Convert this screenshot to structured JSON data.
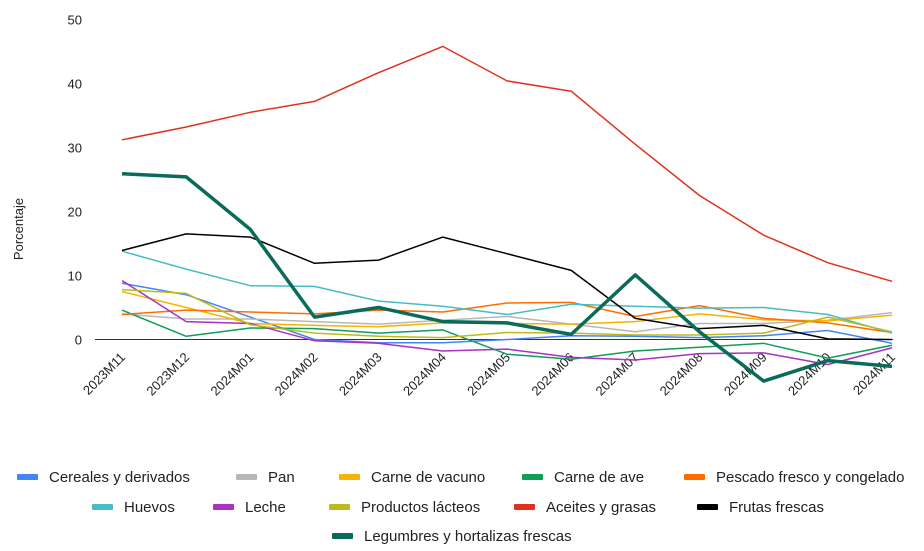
{
  "chart_data": {
    "type": "line",
    "ylabel": "Porcentaje",
    "ylim": [
      -10,
      50
    ],
    "yticks": [
      "50",
      "40",
      "30",
      "20",
      "10",
      "0"
    ],
    "categories": [
      "2023M11",
      "2023M12",
      "2024M01",
      "2024M02",
      "2024M03",
      "2024M04",
      "2024M05",
      "2024M06",
      "2024M07",
      "2024M08",
      "2024M09",
      "2024M10",
      "2024M11"
    ],
    "legend_position": "bottom",
    "series": [
      {
        "name": "Cereales y derivados",
        "color": "#4285f4",
        "values": [
          8.8,
          7.0,
          3.5,
          0.0,
          -0.5,
          -0.5,
          0.0,
          0.6,
          0.5,
          0.3,
          0.6,
          1.4,
          -0.6
        ]
      },
      {
        "name": "Pan",
        "color": "#b7b7b7",
        "values": [
          4.0,
          3.2,
          3.2,
          2.8,
          2.4,
          3.0,
          3.6,
          2.4,
          1.2,
          2.5,
          2.5,
          3.0,
          4.2
        ]
      },
      {
        "name": "Carne de vacuno",
        "color": "#f4b400",
        "values": [
          7.5,
          5.0,
          2.5,
          2.2,
          2.0,
          2.6,
          2.5,
          2.4,
          2.8,
          4.0,
          3.1,
          2.9,
          3.8
        ]
      },
      {
        "name": "Carne de ave",
        "color": "#0f9d58",
        "values": [
          4.6,
          0.5,
          1.8,
          1.7,
          1.0,
          1.5,
          -2.3,
          -3.1,
          -1.8,
          -1.2,
          -0.6,
          -2.9,
          -0.9
        ]
      },
      {
        "name": "Pescado fresco y congelado",
        "color": "#ff6d00",
        "values": [
          3.9,
          4.6,
          4.3,
          4.0,
          4.6,
          4.3,
          5.7,
          5.8,
          3.6,
          5.3,
          3.3,
          2.6,
          1.1
        ]
      },
      {
        "name": "Huevos",
        "color": "#46bdc6",
        "values": [
          13.8,
          11.0,
          8.4,
          8.3,
          6.0,
          5.2,
          3.9,
          5.5,
          5.2,
          4.9,
          5.0,
          3.9,
          1.0
        ]
      },
      {
        "name": "Leche",
        "color": "#ab30c4",
        "values": [
          9.2,
          2.8,
          2.5,
          -0.2,
          -0.6,
          -1.8,
          -1.5,
          -2.8,
          -3.2,
          -2.2,
          -2.1,
          -3.9,
          -1.3
        ]
      },
      {
        "name": "Productos lácteos",
        "color": "#bfb91b",
        "values": [
          7.8,
          7.2,
          2.3,
          1.0,
          0.5,
          0.3,
          1.1,
          1.0,
          0.7,
          0.7,
          1.0,
          3.5,
          1.2
        ]
      },
      {
        "name": "Aceites y grasas",
        "color": "#e0321b",
        "values": [
          31.2,
          33.2,
          35.5,
          37.2,
          41.7,
          45.8,
          40.4,
          38.8,
          30.5,
          22.5,
          16.3,
          12.0,
          9.1
        ]
      },
      {
        "name": "Frutas frescas",
        "color": "#000000",
        "values": [
          13.9,
          16.5,
          16.0,
          11.9,
          12.4,
          16.0,
          13.4,
          10.8,
          3.3,
          1.7,
          2.2,
          0.1,
          0.0
        ]
      },
      {
        "name": "Legumbres y hortalizas frescas",
        "color": "#0b6b5b",
        "values": [
          25.9,
          25.4,
          17.2,
          3.5,
          5.0,
          2.8,
          2.6,
          0.8,
          10.1,
          1.2,
          -6.5,
          -3.3,
          -4.2
        ],
        "thick": true
      }
    ]
  }
}
